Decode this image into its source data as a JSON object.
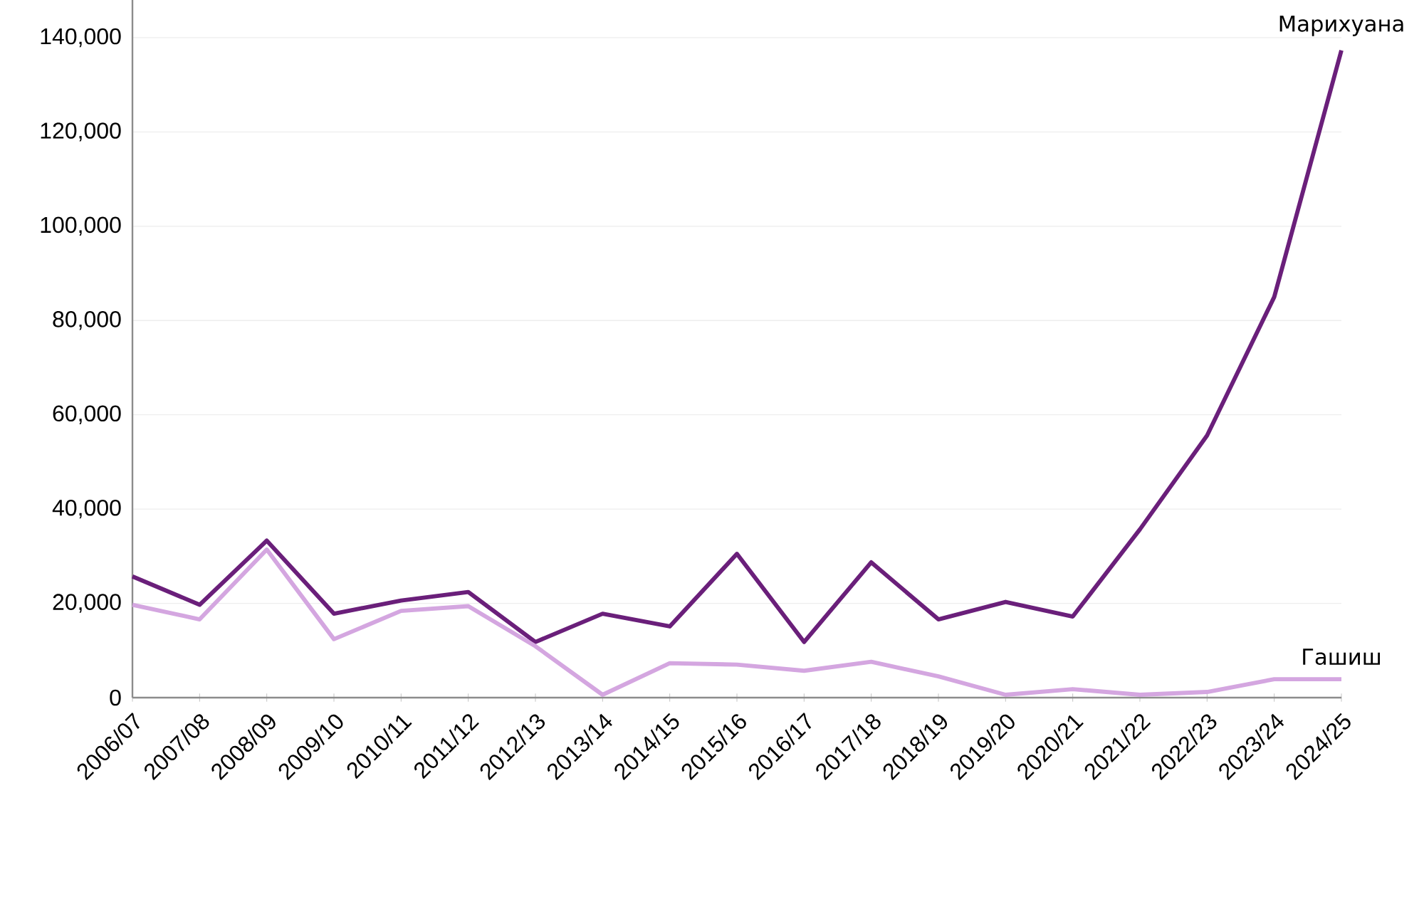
{
  "chart_data": {
    "type": "line",
    "categories": [
      "2006/07",
      "2007/08",
      "2008/09",
      "2009/10",
      "2010/11",
      "2011/12",
      "2012/13",
      "2013/14",
      "2014/15",
      "2015/16",
      "2016/17",
      "2017/18",
      "2018/19",
      "2019/20",
      "2020/21",
      "2021/22",
      "2022/23",
      "2023/24",
      "2024/25"
    ],
    "series": [
      {
        "name": "Марихуана",
        "color": "#6a1f7a",
        "values": [
          25700,
          19700,
          33300,
          17800,
          20600,
          22400,
          11800,
          17800,
          15100,
          30500,
          11800,
          28700,
          16600,
          20300,
          17200,
          35700,
          55600,
          85000,
          137300
        ]
      },
      {
        "name": "Гашиш",
        "color": "#d4a6e0",
        "values": [
          19700,
          16600,
          31400,
          12400,
          18400,
          19400,
          10900,
          600,
          7300,
          7000,
          5700,
          7600,
          4500,
          600,
          1800,
          600,
          1200,
          3900,
          3900
        ]
      }
    ],
    "ylim": [
      0,
      148000
    ],
    "yticks": [
      {
        "value": 0,
        "label": "0"
      },
      {
        "value": 20000,
        "label": "20,000"
      },
      {
        "value": 40000,
        "label": "40,000"
      },
      {
        "value": 60000,
        "label": "60,000"
      },
      {
        "value": 80000,
        "label": "80,000"
      },
      {
        "value": 100000,
        "label": "100,000"
      },
      {
        "value": 120000,
        "label": "120,000"
      },
      {
        "value": 140000,
        "label": "140,000"
      }
    ],
    "grid": "y",
    "legend": false,
    "marker": "none",
    "line_style": "solid"
  }
}
